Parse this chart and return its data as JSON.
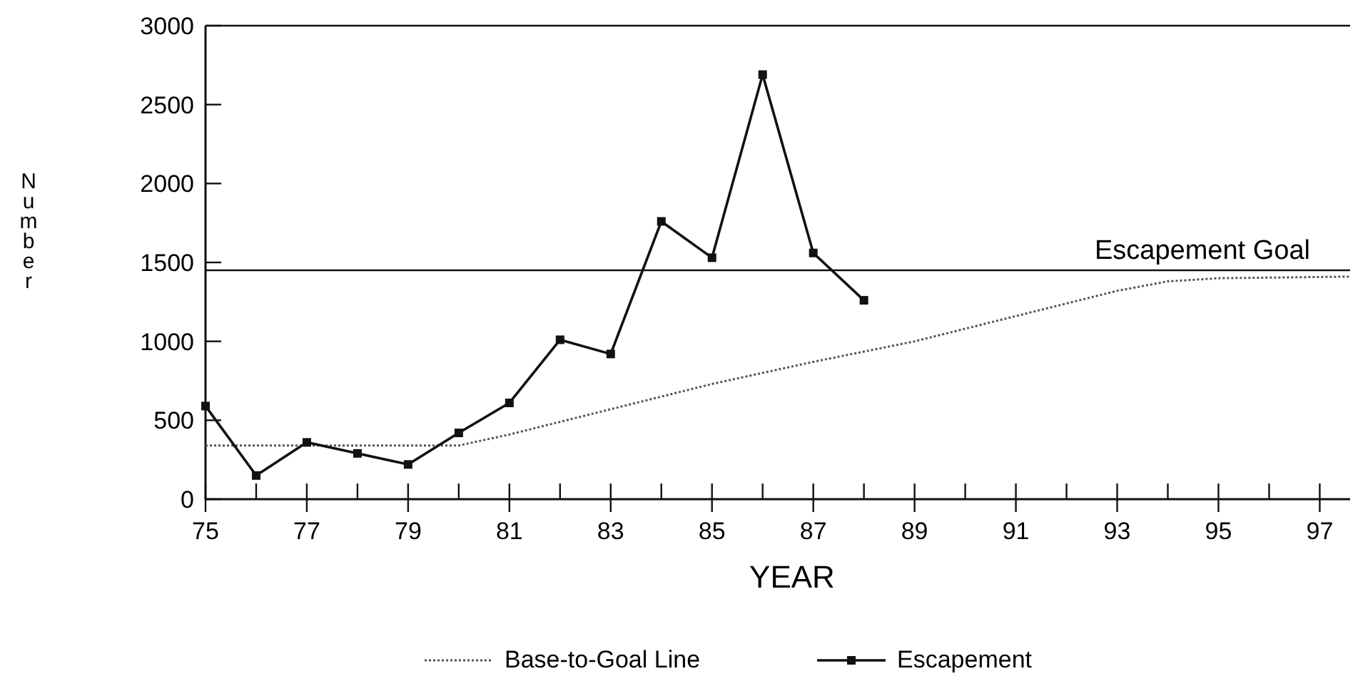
{
  "chart_data": {
    "type": "line",
    "xlabel": "YEAR",
    "ylabel": "Number",
    "xlim": [
      75,
      97.6
    ],
    "ylim": [
      0,
      3000
    ],
    "xticks": [
      75,
      {
        "value": 76,
        "label": null
      },
      77,
      {
        "value": 78,
        "label": null
      },
      79,
      {
        "value": 80,
        "label": null
      },
      81,
      {
        "value": 82,
        "label": null
      },
      83,
      {
        "value": 84,
        "label": null
      },
      85,
      {
        "value": 86,
        "label": null
      },
      87,
      {
        "value": 88,
        "label": null
      },
      89,
      {
        "value": 90,
        "label": null
      },
      91,
      {
        "value": 92,
        "label": null
      },
      93,
      {
        "value": 94,
        "label": null
      },
      95,
      {
        "value": 96,
        "label": null
      },
      97
    ],
    "yticks": [
      0,
      500,
      1000,
      1500,
      2000,
      2500,
      3000
    ],
    "grid": false,
    "legend": "bottom",
    "series": [
      {
        "name": "Base-to-Goal Line",
        "color": "#555555",
        "line_style": "dotted",
        "marker": "none",
        "x": [
          75,
          80,
          81,
          83,
          85,
          87,
          89,
          91,
          93,
          94,
          95,
          97.6
        ],
        "values": [
          340,
          340,
          410,
          570,
          730,
          870,
          1000,
          1160,
          1320,
          1380,
          1400,
          1410
        ]
      },
      {
        "name": "Escapement",
        "color": "#111111",
        "line_style": "solid",
        "marker": "square",
        "x": [
          75,
          76,
          77,
          78,
          79,
          80,
          81,
          82,
          83,
          84,
          85,
          86,
          87,
          88
        ],
        "values": [
          590,
          150,
          360,
          290,
          220,
          420,
          610,
          1010,
          920,
          1760,
          1530,
          2690,
          1560,
          1260
        ]
      }
    ],
    "ref_lines": [
      {
        "axis": "y",
        "value": 1450,
        "label": "Escapement Goal",
        "color": "#111111"
      }
    ]
  }
}
